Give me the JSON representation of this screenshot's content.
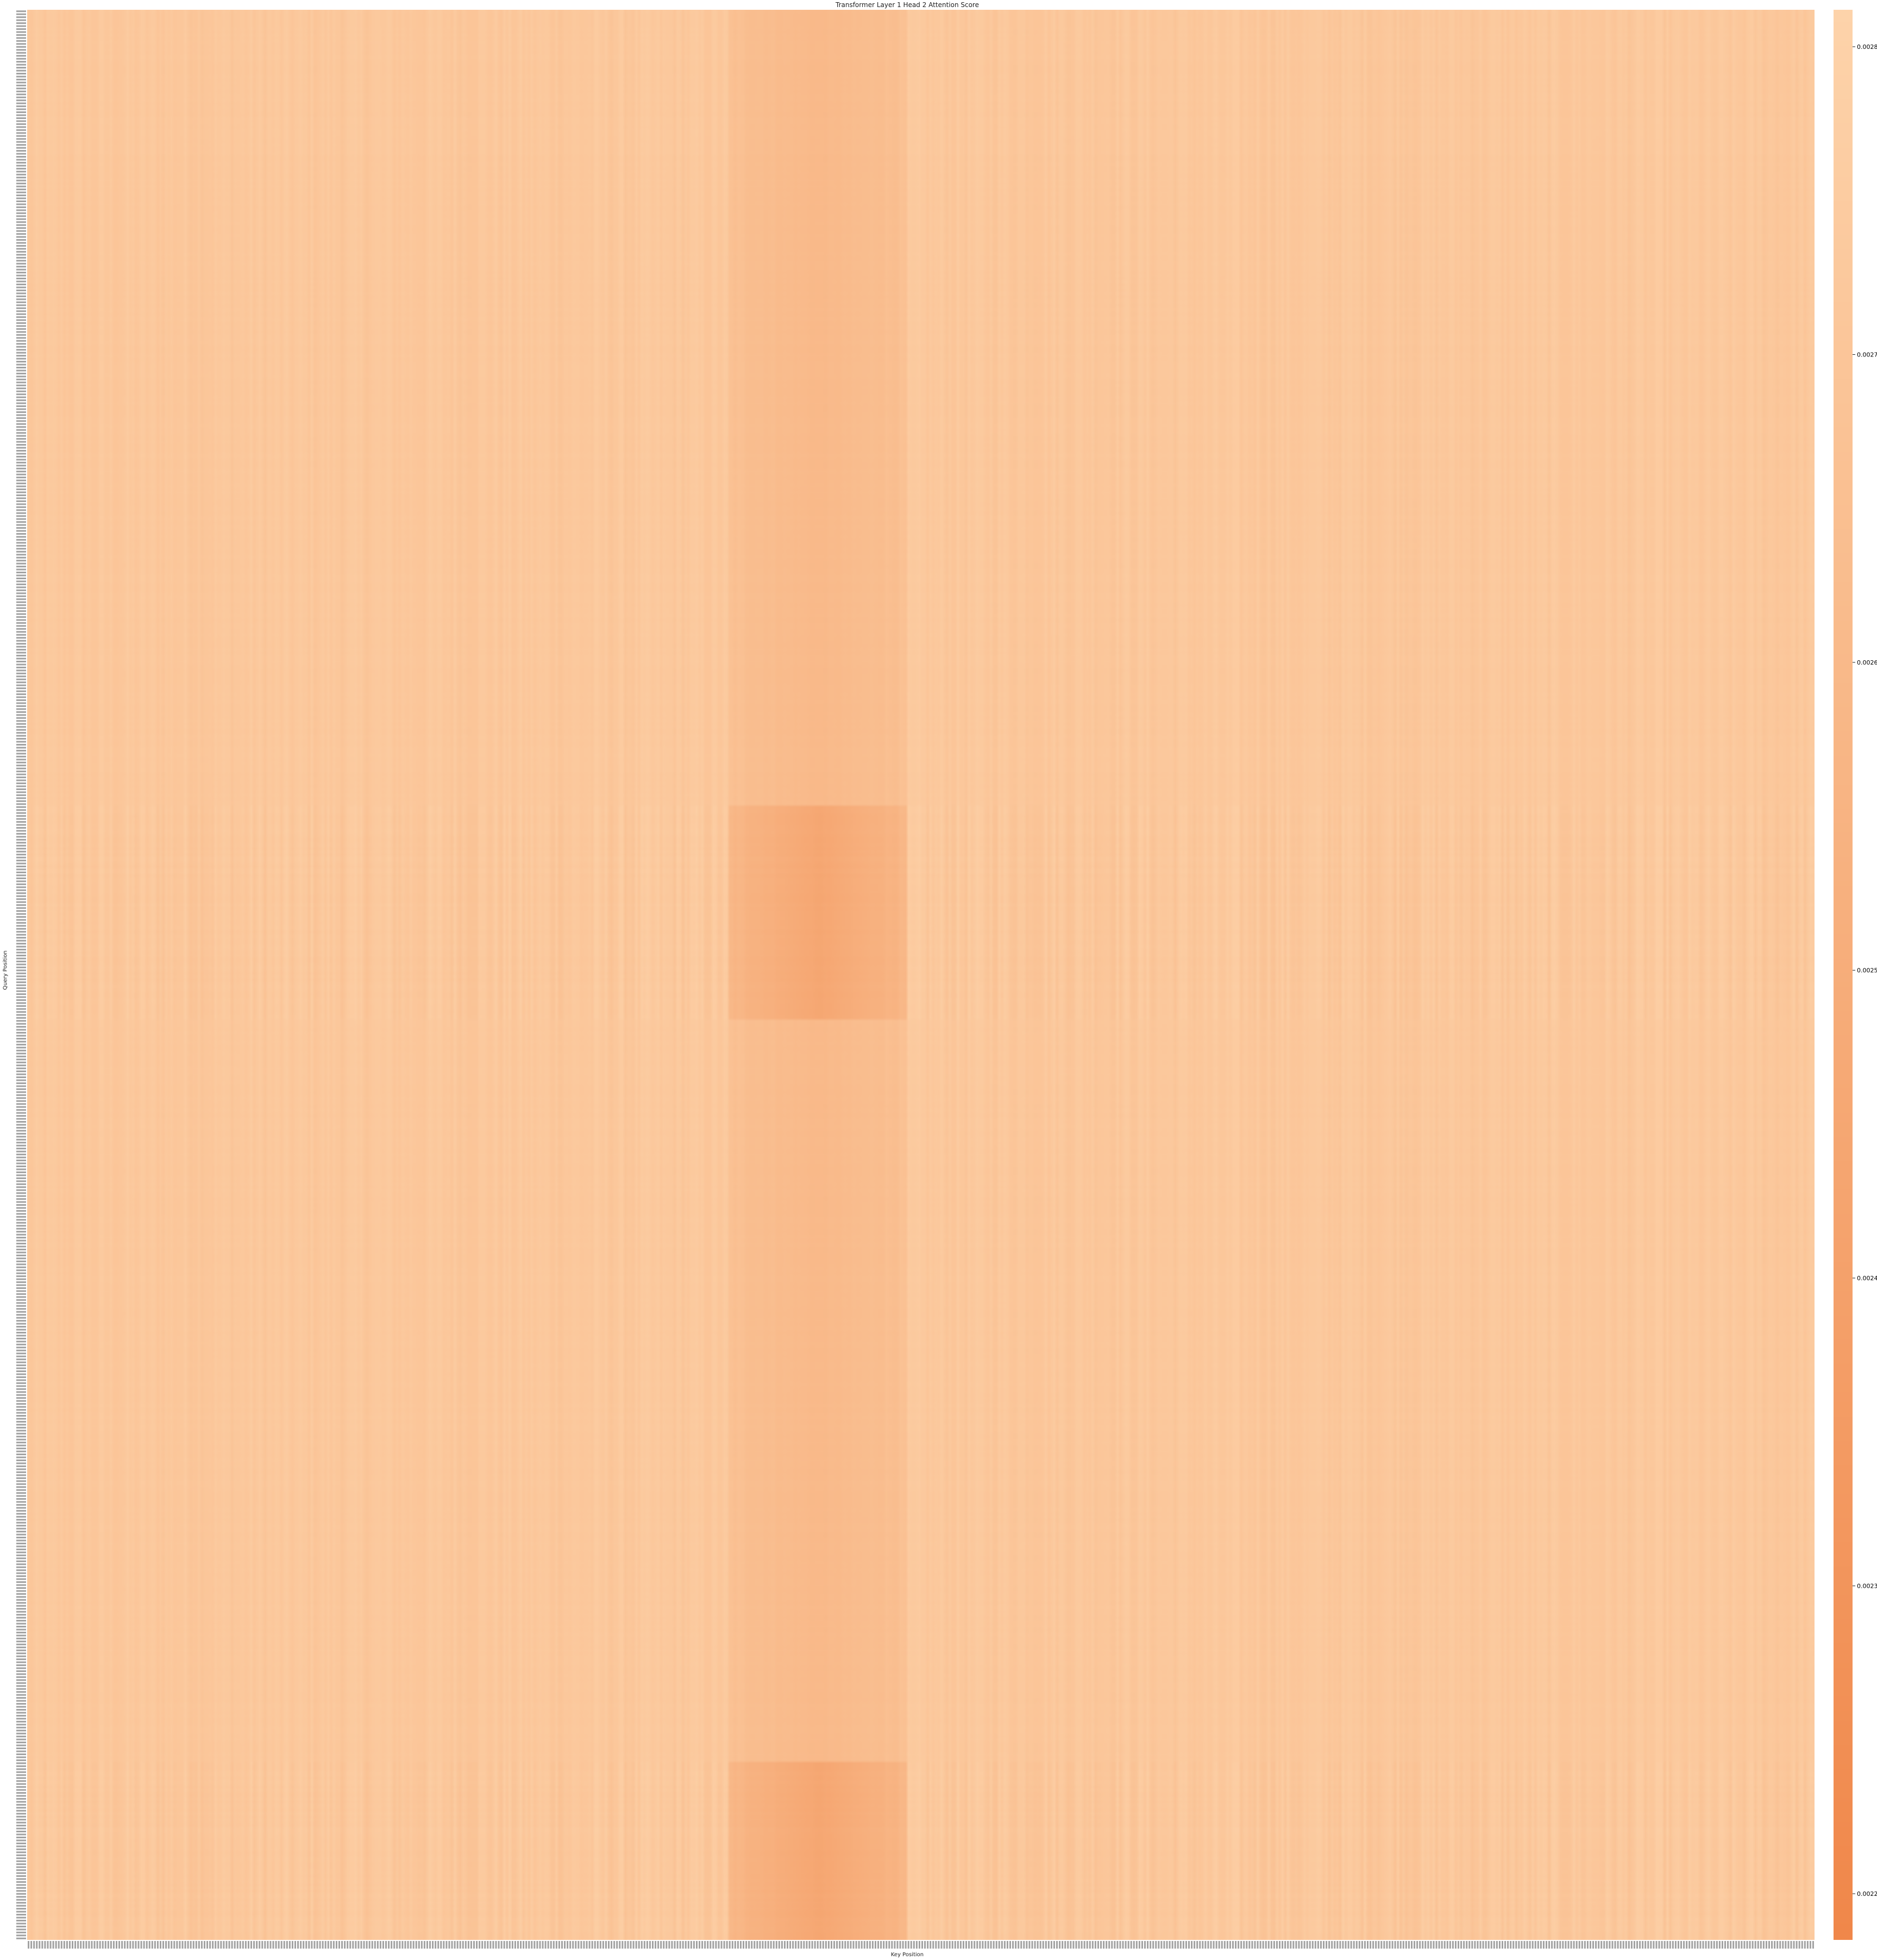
{
  "chart_data": {
    "type": "heatmap",
    "title": "Transformer Layer 1 Head 2 Attention Score",
    "xlabel": "Key Position",
    "ylabel": "Query Position",
    "n_rows": 650,
    "n_cols": 650,
    "tick_label_format": "<index>: <token>",
    "value_range": [
      0.002185,
      0.002812
    ],
    "colormap": {
      "low": "#f0874a",
      "high": "#fdd3aa"
    },
    "colorbar_ticks": [
      0.0022,
      0.0023,
      0.0024,
      0.0025,
      0.0026,
      0.0027,
      0.0028
    ],
    "column_band_dark": {
      "start": 255,
      "end": 320,
      "value": 0.00255
    },
    "row_region_dark": [
      {
        "start": 268,
        "end": 340,
        "label": "query block with stronger contrast"
      },
      {
        "start": 590,
        "end": 650,
        "label": "query block with stronger contrast"
      }
    ],
    "typical_value": 0.00272
  }
}
